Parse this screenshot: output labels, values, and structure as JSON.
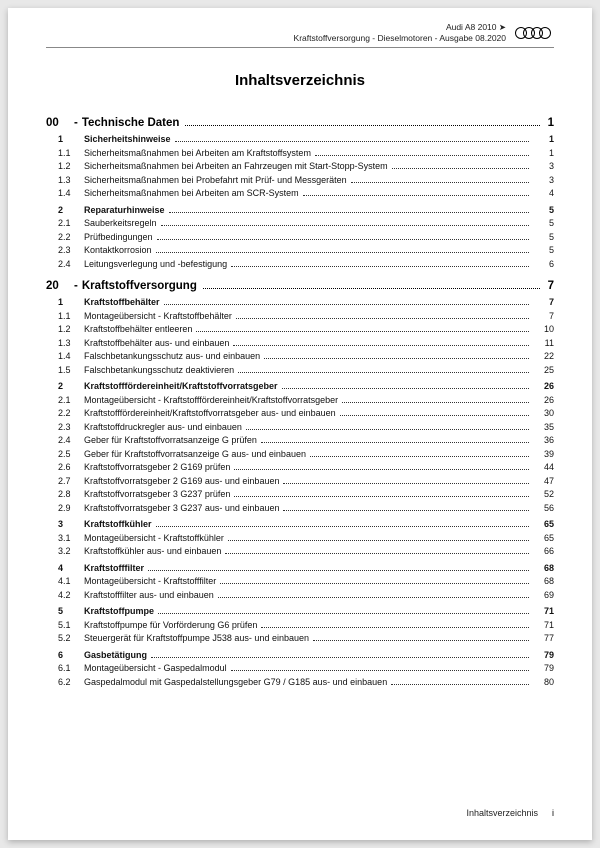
{
  "header": {
    "line1": "Audi A8 2010 ➤",
    "line2": "Kraftstoffversorgung - Dieselmotoren - Ausgabe 08.2020"
  },
  "title": "Inhaltsverzeichnis",
  "sections": [
    {
      "num": "00",
      "label": "Technische Daten",
      "page": "1",
      "groups": [
        {
          "head": {
            "num": "1",
            "label": "Sicherheitshinweise",
            "page": "1"
          },
          "items": [
            {
              "num": "1.1",
              "label": "Sicherheitsmaßnahmen bei Arbeiten am Kraftstoffsystem",
              "page": "1"
            },
            {
              "num": "1.2",
              "label": "Sicherheitsmaßnahmen bei Arbeiten an Fahrzeugen mit Start-Stopp-System",
              "page": "3"
            },
            {
              "num": "1.3",
              "label": "Sicherheitsmaßnahmen bei Probefahrt mit Prüf- und Messgeräten",
              "page": "3"
            },
            {
              "num": "1.4",
              "label": "Sicherheitsmaßnahmen bei Arbeiten am SCR-System",
              "page": "4"
            }
          ]
        },
        {
          "head": {
            "num": "2",
            "label": "Reparaturhinweise",
            "page": "5"
          },
          "items": [
            {
              "num": "2.1",
              "label": "Sauberkeitsregeln",
              "page": "5"
            },
            {
              "num": "2.2",
              "label": "Prüfbedingungen",
              "page": "5"
            },
            {
              "num": "2.3",
              "label": "Kontaktkorrosion",
              "page": "5"
            },
            {
              "num": "2.4",
              "label": "Leitungsverlegung und -befestigung",
              "page": "6"
            }
          ]
        }
      ]
    },
    {
      "num": "20",
      "label": "Kraftstoffversorgung",
      "page": "7",
      "groups": [
        {
          "head": {
            "num": "1",
            "label": "Kraftstoffbehälter",
            "page": "7"
          },
          "items": [
            {
              "num": "1.1",
              "label": "Montageübersicht - Kraftstoffbehälter",
              "page": "7"
            },
            {
              "num": "1.2",
              "label": "Kraftstoffbehälter entleeren",
              "page": "10"
            },
            {
              "num": "1.3",
              "label": "Kraftstoffbehälter aus- und einbauen",
              "page": "11"
            },
            {
              "num": "1.4",
              "label": "Falschbetankungsschutz aus- und einbauen",
              "page": "22"
            },
            {
              "num": "1.5",
              "label": "Falschbetankungsschutz deaktivieren",
              "page": "25"
            }
          ]
        },
        {
          "head": {
            "num": "2",
            "label": "Kraftstofffördereinheit/Kraftstoffvorratsgeber",
            "page": "26"
          },
          "items": [
            {
              "num": "2.1",
              "label": "Montageübersicht - Kraftstofffördereinheit/Kraftstoffvorratsgeber",
              "page": "26"
            },
            {
              "num": "2.2",
              "label": "Kraftstofffördereinheit/Kraftstoffvorratsgeber aus- und einbauen",
              "page": "30"
            },
            {
              "num": "2.3",
              "label": "Kraftstoffdruckregler aus- und einbauen",
              "page": "35"
            },
            {
              "num": "2.4",
              "label": "Geber für Kraftstoffvorratsanzeige G prüfen",
              "page": "36"
            },
            {
              "num": "2.5",
              "label": "Geber für Kraftstoffvorratsanzeige G aus- und einbauen",
              "page": "39"
            },
            {
              "num": "2.6",
              "label": "Kraftstoffvorratsgeber 2 G169 prüfen",
              "page": "44"
            },
            {
              "num": "2.7",
              "label": "Kraftstoffvorratsgeber 2 G169 aus- und einbauen",
              "page": "47"
            },
            {
              "num": "2.8",
              "label": "Kraftstoffvorratsgeber 3 G237 prüfen",
              "page": "52"
            },
            {
              "num": "2.9",
              "label": "Kraftstoffvorratsgeber 3 G237 aus- und einbauen",
              "page": "56"
            }
          ]
        },
        {
          "head": {
            "num": "3",
            "label": "Kraftstoffkühler",
            "page": "65"
          },
          "items": [
            {
              "num": "3.1",
              "label": "Montageübersicht - Kraftstoffkühler",
              "page": "65"
            },
            {
              "num": "3.2",
              "label": "Kraftstoffkühler aus- und einbauen",
              "page": "66"
            }
          ]
        },
        {
          "head": {
            "num": "4",
            "label": "Kraftstofffilter",
            "page": "68"
          },
          "items": [
            {
              "num": "4.1",
              "label": "Montageübersicht - Kraftstofffilter",
              "page": "68"
            },
            {
              "num": "4.2",
              "label": "Kraftstofffilter aus- und einbauen",
              "page": "69"
            }
          ]
        },
        {
          "head": {
            "num": "5",
            "label": "Kraftstoffpumpe",
            "page": "71"
          },
          "items": [
            {
              "num": "5.1",
              "label": "Kraftstoffpumpe für Vorförderung G6 prüfen",
              "page": "71"
            },
            {
              "num": "5.2",
              "label": "Steuergerät für Kraftstoffpumpe J538 aus- und einbauen",
              "page": "77"
            }
          ]
        },
        {
          "head": {
            "num": "6",
            "label": "Gasbetätigung",
            "page": "79"
          },
          "items": [
            {
              "num": "6.1",
              "label": "Montageübersicht - Gaspedalmodul",
              "page": "79"
            },
            {
              "num": "6.2",
              "label": "Gaspedalmodul mit Gaspedalstellungsgeber G79 / G185 aus- und einbauen",
              "page": "80"
            }
          ]
        }
      ]
    }
  ],
  "footer": {
    "label": "Inhaltsverzeichnis",
    "page": "i"
  },
  "colors": {
    "text": "#111111",
    "rule": "#888888",
    "bg": "#ffffff"
  }
}
